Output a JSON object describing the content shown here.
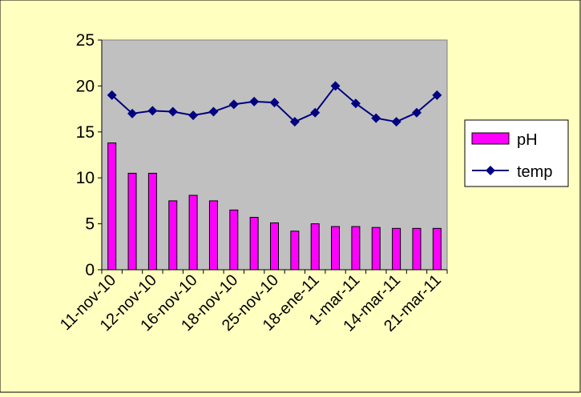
{
  "chart_data": {
    "type": "bar",
    "title": "",
    "xlabel": "",
    "ylabel": "",
    "ylim": [
      0,
      25
    ],
    "yticks": [
      0,
      5,
      10,
      15,
      20,
      25
    ],
    "grid": false,
    "legend_position": "right",
    "x_tick_labels": [
      "11-nov-10",
      "12-nov-10",
      "16-nov-10",
      "18-nov-10",
      "25-nov-10",
      "18-ene-11",
      "1-mar-11",
      "14-mar-11",
      "21-mar-11"
    ],
    "categories_count": 17,
    "series": [
      {
        "name": "pH",
        "kind": "bar",
        "color": "#FF00FF",
        "values": [
          13.8,
          10.5,
          10.5,
          7.5,
          8.1,
          7.5,
          6.5,
          5.7,
          5.1,
          4.2,
          5.0,
          4.7,
          4.7,
          4.6,
          4.5,
          4.5,
          4.5
        ]
      },
      {
        "name": "temp",
        "kind": "line",
        "color": "#000080",
        "marker": "diamond",
        "values": [
          19.0,
          17.0,
          17.3,
          17.2,
          16.8,
          17.2,
          18.0,
          18.3,
          18.2,
          16.1,
          17.1,
          20.0,
          18.1,
          16.5,
          16.1,
          17.1,
          19.0
        ]
      }
    ],
    "colors": {
      "background": "#FFFFC0",
      "plot_area": "#C0C0C0"
    }
  }
}
